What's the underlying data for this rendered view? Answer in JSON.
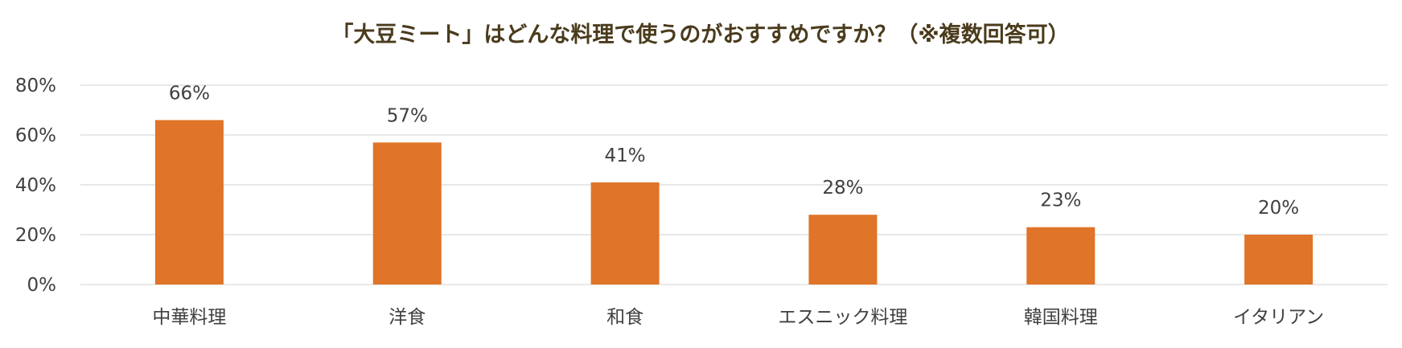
{
  "chart_data": {
    "type": "bar",
    "title": "「大豆ミート」はどんな料理で使うのがおすすめですか？（※複数回答可）",
    "categories": [
      "中華料理",
      "洋食",
      "和食",
      "エスニック料理",
      "韓国料理",
      "イタリアン"
    ],
    "values": [
      66,
      57,
      41,
      28,
      23,
      20
    ],
    "data_labels": [
      "66%",
      "57%",
      "41%",
      "28%",
      "23%",
      "20%"
    ],
    "ylim": [
      0,
      80
    ],
    "yticks": [
      0,
      20,
      40,
      60,
      80
    ],
    "ytick_labels": [
      "0%",
      "20%",
      "40%",
      "60%",
      "80%"
    ],
    "grid": true,
    "bar_color": "#e07428"
  }
}
